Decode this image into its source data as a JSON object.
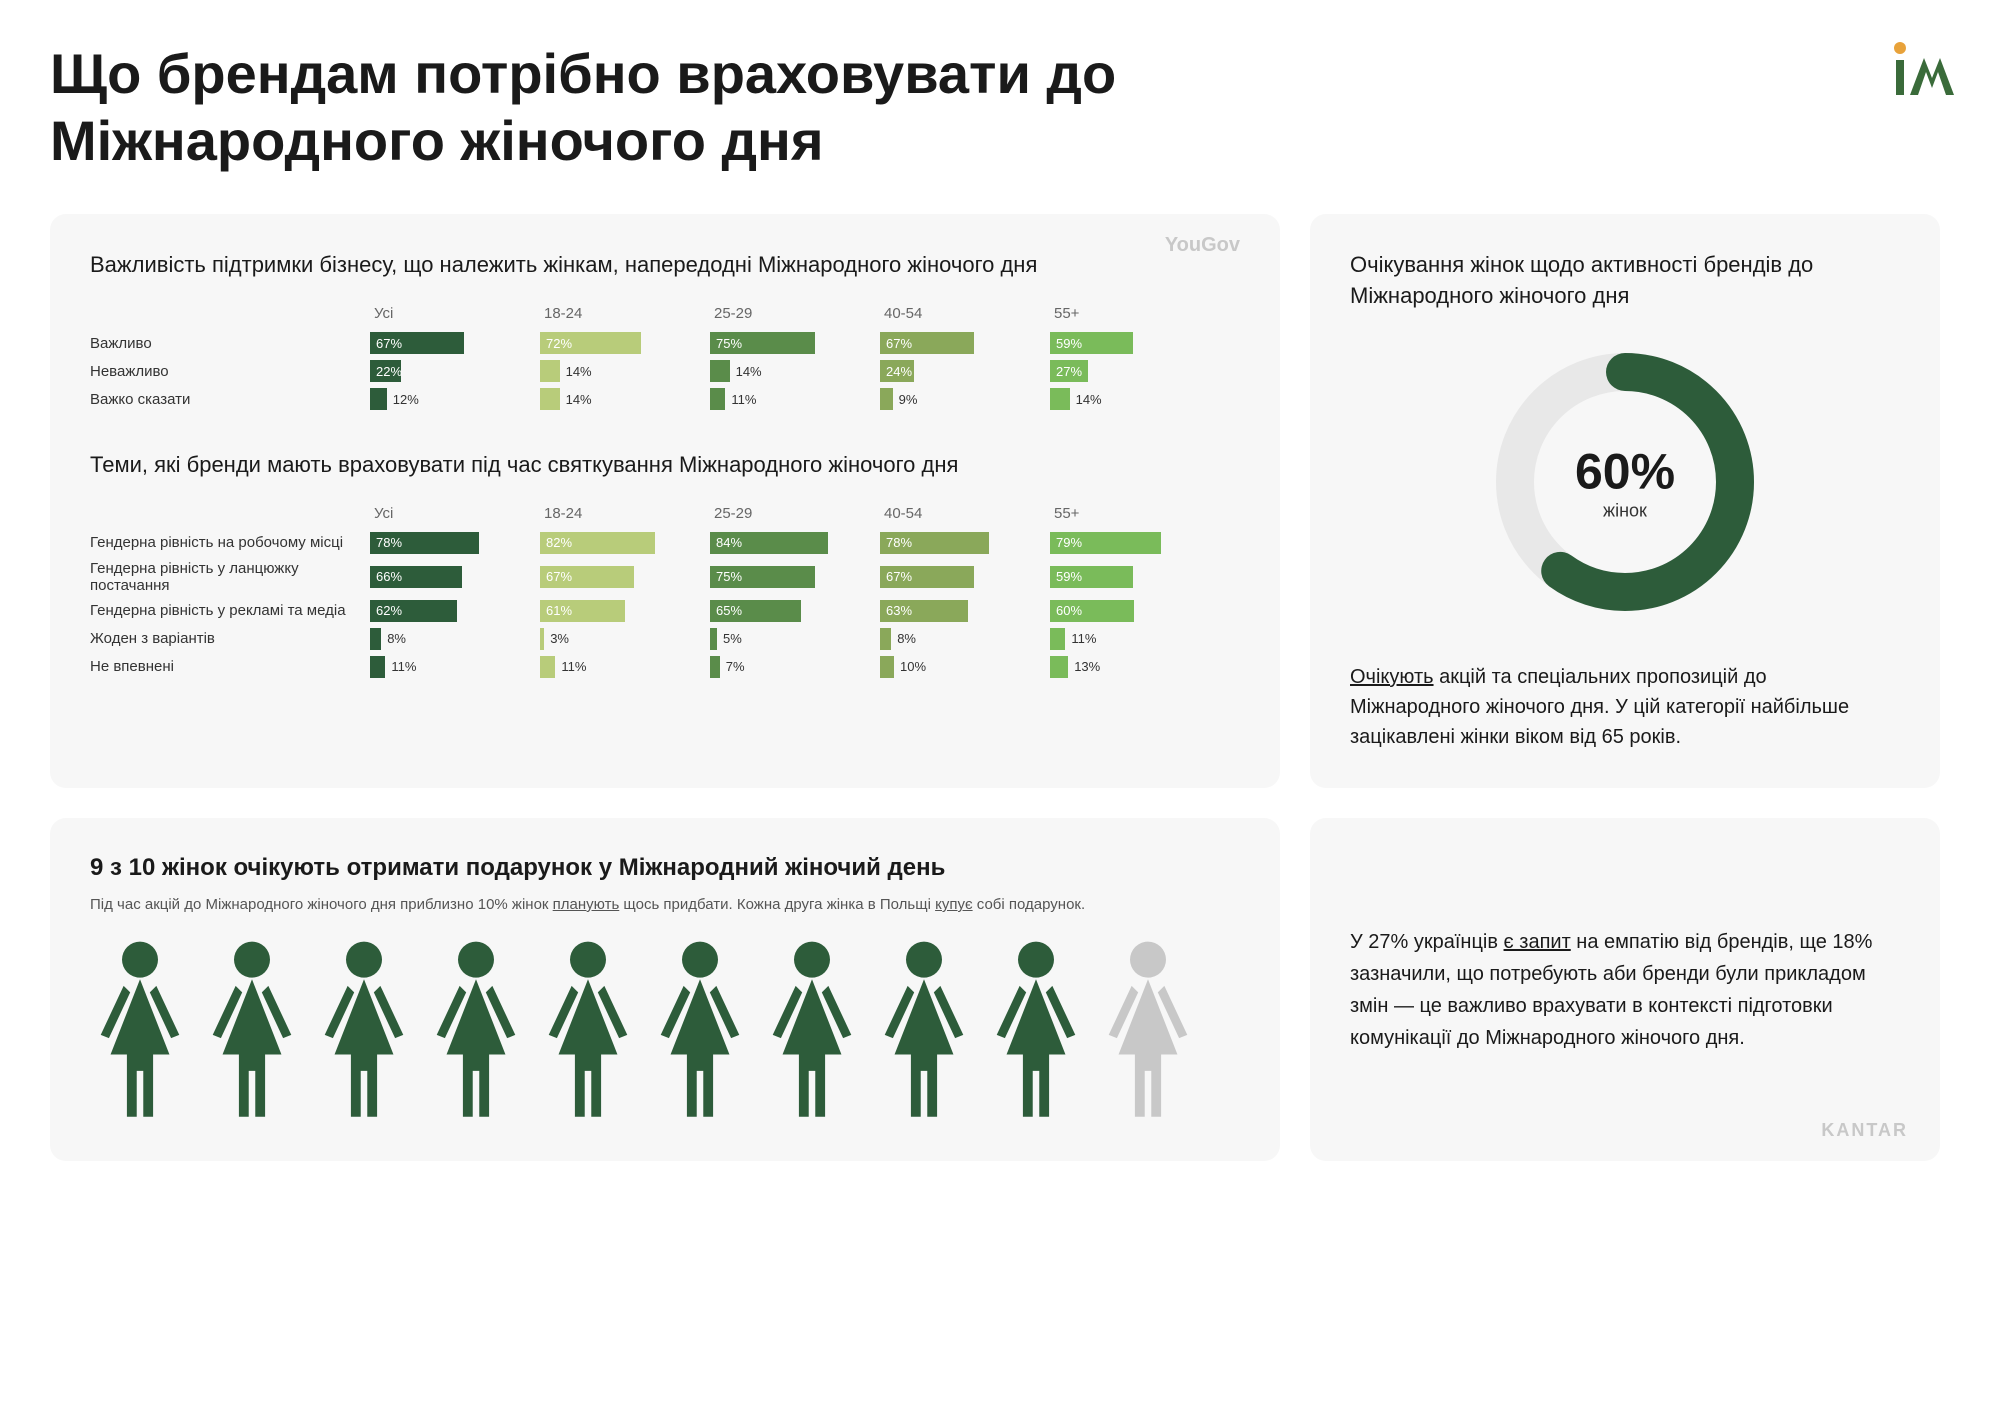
{
  "title": "Що брендам потрібно враховувати до Міжнародного жіночого дня",
  "logo_colors": {
    "dot": "#e8a23a",
    "stroke": "#3a6b3a"
  },
  "source_left": "YouGov",
  "source_right": "KANTAR",
  "chart1": {
    "title": "Важливість підтримки бізнесу, що належить жінкам, напередодні Міжнародного жіночого дня",
    "columns": [
      "Усі",
      "18-24",
      "25-29",
      "40-54",
      "55+"
    ],
    "column_colors": [
      "#2d5c3a",
      "#b8cc7a",
      "#5a8c4a",
      "#8aa85a",
      "#7abb5a"
    ],
    "rows": [
      {
        "label": "Важливо",
        "values": [
          67,
          72,
          75,
          67,
          59
        ]
      },
      {
        "label": "Неважливо",
        "values": [
          22,
          14,
          14,
          24,
          27
        ]
      },
      {
        "label": "Важко сказати",
        "values": [
          12,
          14,
          11,
          9,
          14
        ]
      }
    ],
    "max": 100,
    "bar_cell_width": 170,
    "bar_max_width": 140,
    "label_inside_threshold": 20
  },
  "chart2": {
    "title": "Теми, які бренди мають враховувати під час святкування Міжнародного жіночого дня",
    "columns": [
      "Усі",
      "18-24",
      "25-29",
      "40-54",
      "55+"
    ],
    "column_colors": [
      "#2d5c3a",
      "#b8cc7a",
      "#5a8c4a",
      "#8aa85a",
      "#7abb5a"
    ],
    "rows": [
      {
        "label": "Гендерна рівність на робочому місці",
        "values": [
          78,
          82,
          84,
          78,
          79
        ]
      },
      {
        "label": "Гендерна рівність у ланцюжку постачання",
        "values": [
          66,
          67,
          75,
          67,
          59
        ]
      },
      {
        "label": "Гендерна рівність у рекламі та медіа",
        "values": [
          62,
          61,
          65,
          63,
          60
        ]
      },
      {
        "label": "Жоден з варіантів",
        "values": [
          8,
          3,
          5,
          8,
          11
        ]
      },
      {
        "label": "Не впевнені",
        "values": [
          11,
          11,
          7,
          10,
          13
        ]
      }
    ],
    "max": 100,
    "bar_cell_width": 170,
    "bar_max_width": 140,
    "label_inside_threshold": 20
  },
  "donut": {
    "title": "Очікування жінок щодо активності брендів до Міжнародного жіночого дня",
    "value": 60,
    "value_label": "60%",
    "sub_label": "жінок",
    "ring_color": "#2d5c3a",
    "track_color": "#e8e8e8",
    "stroke_width": 38,
    "desc_pre": "Очікують",
    "desc_rest": " акцій та спеціальних пропозицій до Міжнародного жіночого дня. У цій категорії найбільше зацікавлені жінки віком від 65 років."
  },
  "women": {
    "title": "9 з 10 жінок очікують отримати подарунок у Міжнародний жіночий день",
    "sub_pre": "Під час акцій до Міжнародного жіночого дня приблизно 10% жінок ",
    "sub_u1": "планують",
    "sub_mid": " щось придбати. Кожна друга жінка в Польщі ",
    "sub_u2": "купує",
    "sub_post": " собі подарунок.",
    "count": 10,
    "highlighted": 9,
    "color_on": "#2d5c3a",
    "color_off": "#c8c8c8"
  },
  "bottom_right": {
    "pre": "У 27% українців ",
    "u": "є запит",
    "rest": " на емпатію від брендів, ще 18% зазначили, що потребують аби бренди були прикладом змін — це важливо врахувати в контексті підготовки комунікації до Міжнародного жіночого дня."
  }
}
